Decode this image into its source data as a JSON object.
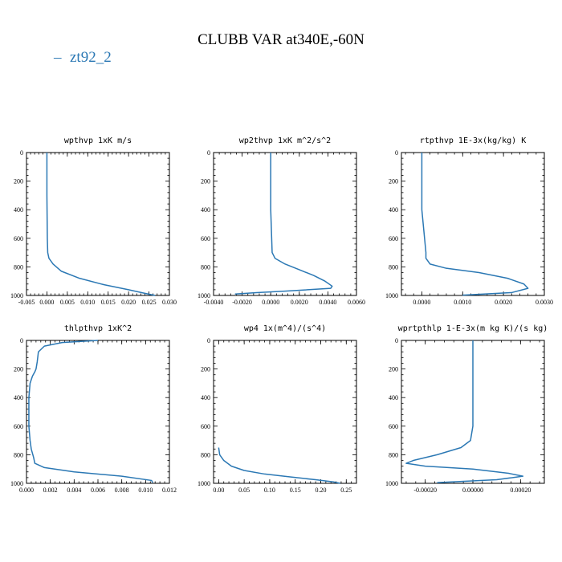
{
  "title": "CLUBB VAR at340E,-60N",
  "legend": {
    "label": "zt92_2",
    "marker": "–",
    "color": "#2b78b4"
  },
  "chart_data": [
    {
      "type": "line",
      "title": "wpthvp   1xK m/s",
      "xlim": [
        -0.005,
        0.03
      ],
      "ylim": [
        1000,
        0
      ],
      "xticks": [
        -0.005,
        0.0,
        0.005,
        0.01,
        0.015,
        0.02,
        0.025,
        0.03
      ],
      "xtick_labels": [
        "-0.005",
        "0.000",
        "0.005",
        "0.010",
        "0.015",
        "0.020",
        "0.025",
        "0.030"
      ],
      "yticks": [
        0,
        200,
        400,
        600,
        800,
        1000
      ],
      "ytick_labels": [
        "0",
        "200",
        "400",
        "600",
        "800",
        "1000"
      ],
      "series": [
        {
          "name": "zt92_2",
          "x": [
            0.0,
            0.0,
            0.0001,
            0.0002,
            0.0005,
            0.0015,
            0.0035,
            0.008,
            0.014,
            0.02,
            0.024,
            0.0265
          ],
          "y": [
            0,
            300,
            600,
            700,
            740,
            780,
            830,
            880,
            925,
            960,
            985,
            1000
          ]
        }
      ]
    },
    {
      "type": "line",
      "title": "wp2thvp   1xK m^2/s^2",
      "xlim": [
        -0.004,
        0.006
      ],
      "ylim": [
        1000,
        0
      ],
      "xticks": [
        -0.004,
        -0.002,
        0.0,
        0.002,
        0.004,
        0.006
      ],
      "xtick_labels": [
        "-0.0040",
        "-0.0020",
        "0.0000",
        "0.0020",
        "0.0040",
        "0.0060"
      ],
      "yticks": [
        0,
        200,
        400,
        600,
        800,
        1000
      ],
      "ytick_labels": [
        "0",
        "200",
        "400",
        "600",
        "800",
        "1000"
      ],
      "series": [
        {
          "name": "zt92_2",
          "x": [
            0.0,
            0.0,
            0.0001,
            0.0003,
            0.001,
            0.002,
            0.003,
            0.0038,
            0.0043,
            0.0042,
            0.001,
            -0.001,
            -0.0025
          ],
          "y": [
            0,
            400,
            700,
            740,
            780,
            820,
            860,
            900,
            935,
            950,
            970,
            980,
            990
          ]
        }
      ]
    },
    {
      "type": "line",
      "title": "rtpthvp   1E-3x(kg/kg) K",
      "xlim": [
        -0.0005,
        0.003
      ],
      "ylim": [
        1000,
        0
      ],
      "xticks": [
        0.0,
        0.001,
        0.002,
        0.003
      ],
      "xtick_labels": [
        "0.0000",
        "0.0010",
        "0.0020",
        "0.0030"
      ],
      "yticks": [
        0,
        200,
        400,
        600,
        800,
        1000
      ],
      "ytick_labels": [
        "0",
        "200",
        "400",
        "600",
        "800",
        "1000"
      ],
      "series": [
        {
          "name": "zt92_2",
          "x": [
            0.0,
            0.0,
            0.0001,
            0.0001,
            0.0002,
            0.0006,
            0.0014,
            0.0021,
            0.0025,
            0.0026,
            0.0022,
            0.001
          ],
          "y": [
            0,
            400,
            700,
            740,
            780,
            810,
            840,
            880,
            920,
            950,
            980,
            998
          ]
        }
      ]
    },
    {
      "type": "line",
      "title": "thlpthvp   1xK^2",
      "xlim": [
        0.0,
        0.012
      ],
      "ylim": [
        1000,
        0
      ],
      "xticks": [
        0.0,
        0.002,
        0.004,
        0.006,
        0.008,
        0.01,
        0.012
      ],
      "xtick_labels": [
        "0.000",
        "0.002",
        "0.004",
        "0.006",
        "0.008",
        "0.010",
        "0.012"
      ],
      "yticks": [
        0,
        200,
        400,
        600,
        800,
        1000
      ],
      "ytick_labels": [
        "0",
        "200",
        "400",
        "600",
        "800",
        "1000"
      ],
      "series": [
        {
          "name": "zt92_2",
          "x": [
            0.006,
            0.003,
            0.0015,
            0.001,
            0.0009,
            0.0008,
            0.0007,
            0.0005,
            0.0003,
            0.0002,
            0.0002,
            0.0003,
            0.0004,
            0.0006,
            0.0007,
            0.0015,
            0.004,
            0.008,
            0.0105,
            0.0106
          ],
          "y": [
            0,
            15,
            40,
            80,
            150,
            200,
            220,
            250,
            300,
            400,
            600,
            700,
            760,
            820,
            860,
            890,
            920,
            950,
            980,
            995
          ]
        }
      ]
    },
    {
      "type": "line",
      "title": "wp4   1x(m^4)/(s^4)",
      "xlim": [
        -0.01,
        0.27
      ],
      "ylim": [
        1000,
        0
      ],
      "xticks": [
        0.0,
        0.05,
        0.1,
        0.15,
        0.2,
        0.25
      ],
      "xtick_labels": [
        "0.00",
        "0.05",
        "0.10",
        "0.15",
        "0.20",
        "0.25"
      ],
      "yticks": [
        0,
        200,
        400,
        600,
        800,
        1000
      ],
      "ytick_labels": [
        "0",
        "200",
        "400",
        "600",
        "800",
        "1000"
      ],
      "series": [
        {
          "name": "zt92_2",
          "x": [
            0.0,
            0.002,
            0.01,
            0.025,
            0.05,
            0.09,
            0.14,
            0.19,
            0.225,
            0.238
          ],
          "y": [
            750,
            800,
            840,
            880,
            910,
            935,
            955,
            975,
            990,
            1000
          ]
        }
      ]
    },
    {
      "type": "line",
      "title": "wprtpthlp   1-E-3x(m kg K)/(s kg)",
      "xlim": [
        -0.0003,
        0.0003
      ],
      "ylim": [
        1000,
        0
      ],
      "xticks": [
        -0.0002,
        0.0,
        0.0002
      ],
      "xtick_labels": [
        "-0.00020",
        "0.00000",
        "0.00020"
      ],
      "yticks": [
        0,
        200,
        400,
        600,
        800,
        1000
      ],
      "ytick_labels": [
        "0",
        "200",
        "400",
        "600",
        "800",
        "1000"
      ],
      "series": [
        {
          "name": "zt92_2",
          "x": [
            0.0,
            0.0,
            -1e-05,
            -5e-05,
            -0.00015,
            -0.00025,
            -0.00028,
            -0.0002,
            0.0,
            0.00015,
            0.00021,
            0.0001,
            -0.00015
          ],
          "y": [
            0,
            600,
            700,
            750,
            800,
            840,
            860,
            880,
            900,
            930,
            950,
            975,
            995
          ]
        }
      ]
    }
  ]
}
